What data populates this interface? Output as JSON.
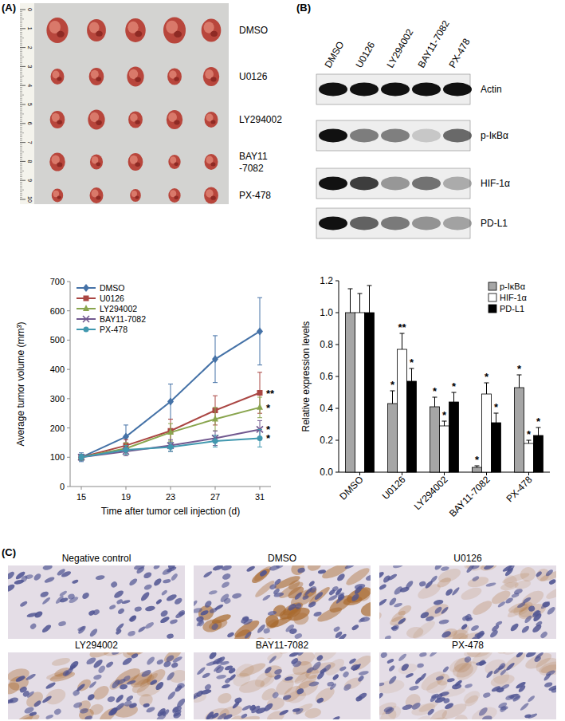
{
  "figure": {
    "panel_labels": [
      "(A)",
      "(B)",
      "(C)"
    ],
    "photo": {
      "ruler": [
        0,
        1,
        2,
        3,
        4,
        5,
        6,
        7,
        8,
        9,
        10
      ],
      "groups": [
        [
          "DMSO"
        ],
        [
          "U0126"
        ],
        [
          "LY294002"
        ],
        [
          "BAY11",
          "-7082"
        ],
        [
          "PX-478"
        ]
      ]
    },
    "blot": {
      "lanes": [
        "DMSO",
        "U0126",
        "LY294002",
        "BAY11-7082",
        "PX-478"
      ],
      "bands": [
        "Actin",
        "p-IκBα",
        "HIF-1α",
        "PD-L1"
      ]
    },
    "ihc": {
      "titles": [
        "Negative control",
        "DMSO",
        "U0126",
        "LY294002",
        "BAY11-7082",
        "PX-478"
      ]
    }
  },
  "chart_data": [
    {
      "type": "line",
      "x_label": "Time after tumor cell injection (d)",
      "y_label": "Average tumor volume (mm³)",
      "x": [
        15,
        19,
        23,
        27,
        31
      ],
      "xlim": [
        14,
        32
      ],
      "xticks": [
        15,
        19,
        23,
        27,
        31
      ],
      "ylim": [
        0,
        700
      ],
      "yticks": [
        0,
        100,
        200,
        300,
        400,
        500,
        600,
        700
      ],
      "legend": "upper-left",
      "series": [
        {
          "name": "DMSO",
          "color": "#4572a7",
          "marker": "diamond",
          "values": [
            100,
            170,
            290,
            435,
            530
          ],
          "error": [
            15,
            40,
            60,
            80,
            115
          ]
        },
        {
          "name": "U0126",
          "color": "#aa4643",
          "marker": "square",
          "values": [
            100,
            140,
            190,
            260,
            320
          ],
          "error": [
            10,
            20,
            40,
            50,
            70
          ],
          "annotation": "**"
        },
        {
          "name": "LY294002",
          "color": "#89a54e",
          "marker": "triangle",
          "values": [
            100,
            130,
            185,
            230,
            270
          ],
          "error": [
            10,
            20,
            30,
            40,
            35
          ],
          "annotation": "*"
        },
        {
          "name": "BAY11-7082",
          "color": "#71588f",
          "marker": "x",
          "values": [
            100,
            120,
            140,
            165,
            195
          ],
          "error": [
            10,
            15,
            20,
            25,
            30
          ],
          "annotation": "*"
        },
        {
          "name": "PX-478",
          "color": "#4198af",
          "marker": "circle",
          "values": [
            100,
            125,
            135,
            155,
            165
          ],
          "error": [
            10,
            15,
            15,
            20,
            30
          ],
          "annotation": "*"
        }
      ]
    },
    {
      "type": "bar",
      "y_label": "Relative expression levels",
      "categories": [
        "DMSO",
        "U0126",
        "LY294002",
        "BAY11-7082",
        "PX-478"
      ],
      "ylim": [
        0,
        1.2
      ],
      "yticks": [
        {
          "value": 0,
          "label": "0.0"
        },
        0.2,
        0.4,
        0.6,
        0.8,
        {
          "value": 1,
          "label": "1.0"
        },
        1.2
      ],
      "legend": "upper-right",
      "series": [
        {
          "name": "p-IκBα",
          "color": "#a6a6a6",
          "values": [
            1,
            0.43,
            0.41,
            0.03,
            0.53
          ],
          "error": [
            0.15,
            0.08,
            0.06,
            0.01,
            0.08
          ],
          "annotations": [
            null,
            "*",
            "*",
            "*",
            "*"
          ]
        },
        {
          "name": "HIF-1α",
          "color": "#ffffff",
          "values": [
            1,
            0.77,
            0.29,
            0.49,
            0.18
          ],
          "error": [
            0.12,
            0.1,
            0.03,
            0.07,
            0.02
          ],
          "annotations": [
            null,
            "**",
            "*",
            "*",
            "*"
          ]
        },
        {
          "name": "PD-L1",
          "color": "#000000",
          "values": [
            1,
            0.57,
            0.44,
            0.31,
            0.23
          ],
          "error": [
            0.17,
            0.08,
            0.06,
            0.06,
            0.05
          ],
          "annotations": [
            null,
            "*",
            "*",
            "*",
            "*"
          ]
        }
      ]
    }
  ]
}
